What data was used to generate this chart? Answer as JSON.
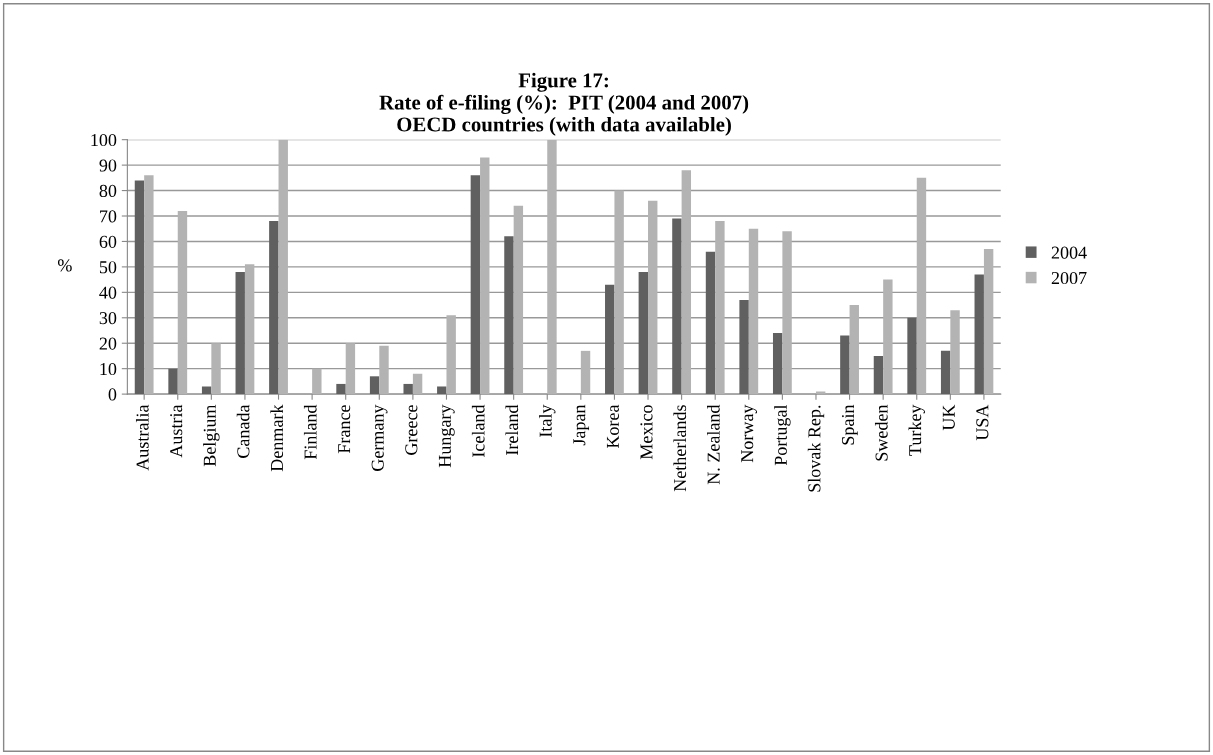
{
  "chart_data": {
    "type": "bar",
    "title": "Figure 17:\nRate of e-filing (%):  PIT (2004 and 2007)\nOECD countries (with data available)",
    "ylabel": "%",
    "categories": [
      "Australia",
      "Austria",
      "Belgium",
      "Canada",
      "Denmark",
      "Finland",
      "France",
      "Germany",
      "Greece",
      "Hungary",
      "Iceland",
      "Ireland",
      "Italy",
      "Japan",
      "Korea",
      "Mexico",
      "Netherlands",
      "N. Zealand",
      "Norway",
      "Portugal",
      "Slovak Rep.",
      "Spain",
      "Sweden",
      "Turkey",
      "UK",
      "USA"
    ],
    "series": [
      {
        "name": "2004",
        "color": "#606060",
        "values": [
          84,
          10,
          3,
          48,
          68,
          null,
          4,
          7,
          4,
          3,
          86,
          62,
          null,
          null,
          43,
          48,
          69,
          56,
          37,
          24,
          null,
          23,
          15,
          30,
          17,
          47
        ]
      },
      {
        "name": "2007",
        "color": "#b3b3b3",
        "values": [
          86,
          72,
          20,
          51,
          100,
          10,
          20,
          19,
          8,
          31,
          93,
          74,
          100,
          17,
          80,
          76,
          88,
          68,
          65,
          64,
          1,
          35,
          45,
          85,
          33,
          57
        ]
      }
    ],
    "ylim": [
      0,
      100
    ],
    "yticks": [
      0,
      10,
      20,
      30,
      40,
      50,
      60,
      70,
      80,
      90,
      100
    ],
    "grid": "y",
    "legend": "right"
  }
}
